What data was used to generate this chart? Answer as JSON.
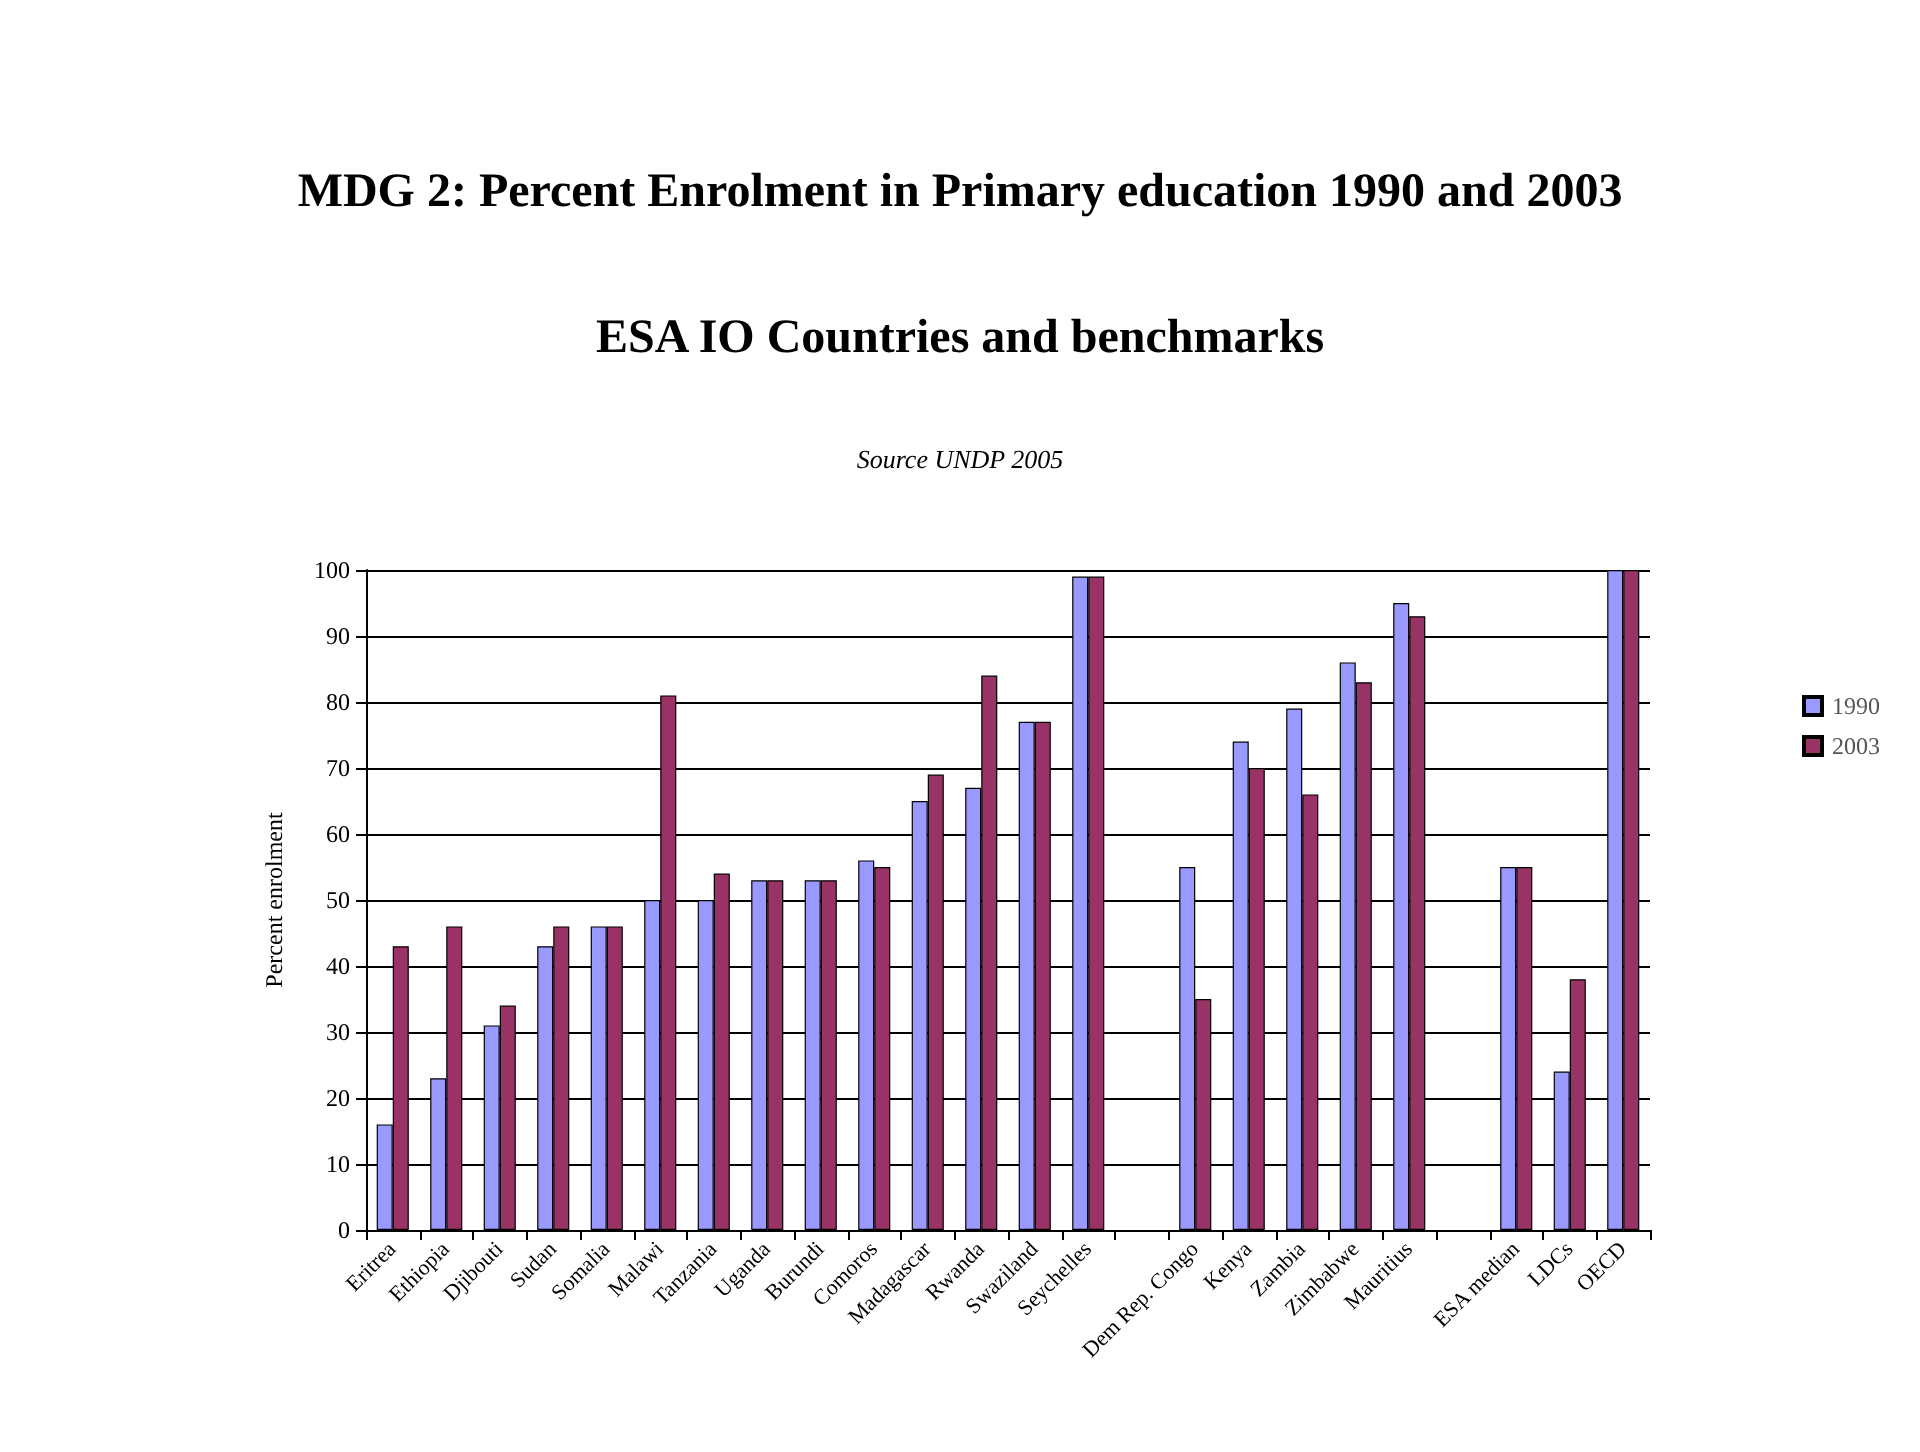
{
  "chart_data": {
    "type": "bar",
    "title": "MDG 2: Percent Enrolment in Primary education 1990 and 2003",
    "subtitle": "ESA IO Countries and benchmarks",
    "annotations": [
      "Source UNDP 2005"
    ],
    "ylabel": "Percent enrolment",
    "categories": [
      "Eritrea",
      "Ethiopia",
      "Djibouti",
      "Sudan",
      "Somalia",
      "Malawi",
      "Tanzania",
      "Uganda",
      "Burundi",
      "Comoros",
      "Madagascar",
      "Rwanda",
      "Swaziland",
      "Seychelles",
      null,
      "Dem Rep. Congo",
      "Kenya",
      "Zambia",
      "Zimbabwe",
      "Mauritius",
      null,
      "ESA median",
      "LDCs",
      "OECD"
    ],
    "series": [
      {
        "name": "1990",
        "color": "#9999ff",
        "values": [
          16,
          23,
          31,
          43,
          46,
          50,
          50,
          53,
          53,
          56,
          65,
          67,
          77,
          99,
          null,
          55,
          74,
          79,
          86,
          95,
          null,
          55,
          24,
          100
        ]
      },
      {
        "name": "2003",
        "color": "#993366",
        "values": [
          43,
          46,
          34,
          46,
          46,
          81,
          54,
          53,
          53,
          55,
          69,
          84,
          77,
          99,
          null,
          35,
          70,
          66,
          83,
          93,
          null,
          55,
          38,
          100
        ]
      }
    ],
    "ylim": [
      0,
      100
    ],
    "yticks": [
      0,
      10,
      20,
      30,
      40,
      50,
      60,
      70,
      80,
      90,
      100
    ],
    "grid": "y",
    "legend": "right"
  }
}
